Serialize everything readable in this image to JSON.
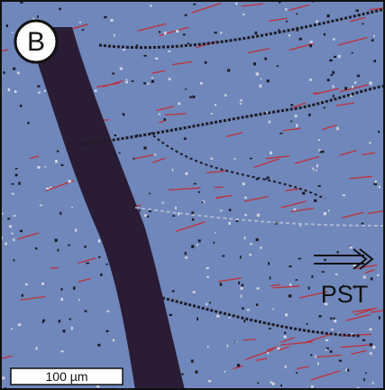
{
  "panel_label": "B",
  "annotation": "PST",
  "scale_bar": {
    "label": "100 µm"
  }
}
